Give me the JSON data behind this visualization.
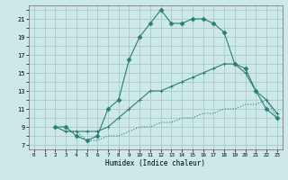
{
  "xlabel": "Humidex (Indice chaleur)",
  "background_color": "#cde8e8",
  "grid_color": "#aacfcf",
  "line_color": "#2a7f72",
  "xlim": [
    -0.5,
    23.5
  ],
  "ylim": [
    6.5,
    22.5
  ],
  "xticks": [
    0,
    1,
    2,
    3,
    4,
    5,
    6,
    7,
    8,
    9,
    10,
    11,
    12,
    13,
    14,
    15,
    16,
    17,
    18,
    19,
    20,
    21,
    22,
    23
  ],
  "yticks": [
    7,
    8,
    9,
    10,
    11,
    12,
    13,
    14,
    15,
    16,
    17,
    18,
    19,
    20,
    21,
    22
  ],
  "ytick_labels": [
    "7",
    "",
    "9",
    "",
    "11",
    "",
    "13",
    "",
    "15",
    "",
    "17",
    "",
    "19",
    "",
    "21",
    ""
  ],
  "line1_x": [
    2,
    3,
    4,
    5,
    6,
    7,
    8,
    9,
    10,
    11,
    12,
    13,
    14,
    15,
    16,
    17,
    18,
    19,
    20,
    21,
    22,
    23
  ],
  "line1_y": [
    9,
    9,
    8,
    7.5,
    8,
    11,
    12,
    16.5,
    19,
    20.5,
    22,
    20.5,
    20.5,
    21,
    21,
    20.5,
    19.5,
    16,
    15.5,
    13,
    11,
    10
  ],
  "line2_x": [
    2,
    3,
    4,
    5,
    6,
    7,
    8,
    9,
    10,
    11,
    12,
    13,
    14,
    15,
    16,
    17,
    18,
    19,
    20,
    21,
    22,
    23
  ],
  "line2_y": [
    9,
    8.5,
    8.5,
    8.5,
    8.5,
    9,
    10,
    11,
    12,
    13,
    13,
    13.5,
    14,
    14.5,
    15,
    15.5,
    16,
    16,
    15,
    13,
    12,
    10.5
  ],
  "line3_x": [
    2,
    3,
    4,
    5,
    6,
    7,
    8,
    9,
    10,
    11,
    12,
    13,
    14,
    15,
    16,
    17,
    18,
    19,
    20,
    21,
    22,
    23
  ],
  "line3_y": [
    9,
    8.5,
    8.5,
    7.5,
    7.5,
    8,
    8,
    8.5,
    9,
    9,
    9.5,
    9.5,
    10,
    10,
    10.5,
    10.5,
    11,
    11,
    11.5,
    11.5,
    12,
    10
  ]
}
